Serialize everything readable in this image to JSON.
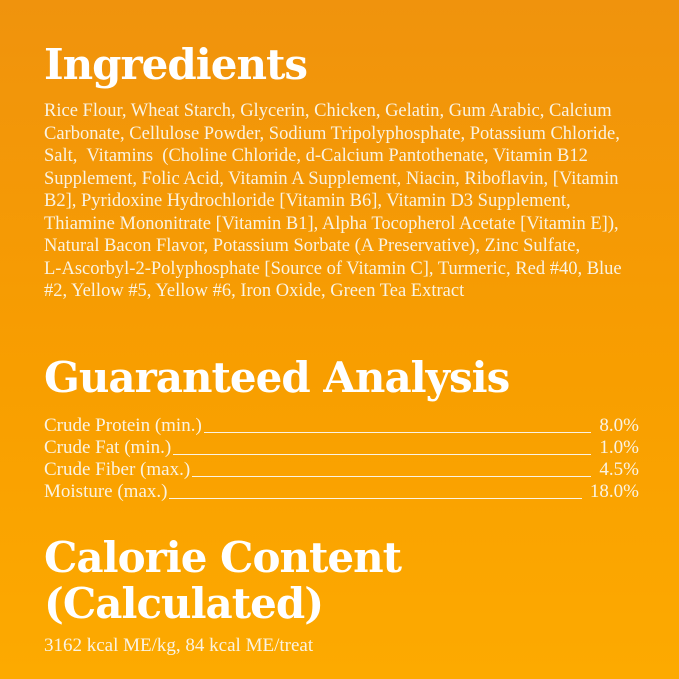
{
  "theme": {
    "background_top": "#F0930D",
    "background_bottom": "#FDAA00",
    "heading_color": "#FFFFFF",
    "body_text_color": "#FAF3E2"
  },
  "ingredients": {
    "heading": "Ingredients",
    "body": "Rice Flour, Wheat Starch, Glycerin, Chicken, Gelatin, Gum Arabic, Calcium\nCarbonate, Cellulose Powder, Sodium Tripolyphosphate, Potassium Chloride,\nSalt,  Vitamins  (Choline Chloride, d-Calcium Pantothenate, Vitamin B12\nSupplement, Folic Acid, Vitamin A Supplement, Niacin, Riboflavin, [Vitamin\nB2], Pyridoxine Hydrochloride [Vitamin B6], Vitamin D3 Supplement,\nThiamine Mononitrate [Vitamin B1], Alpha Tocopherol Acetate [Vitamin E]),\nNatural Bacon Flavor, Potassium Sorbate (A Preservative), Zinc Sulfate,\nL-Ascorbyl-2-Polyphosphate [Source of Vitamin C], Turmeric, Red #40, Blue\n#2, Yellow #5, Yellow #6, Iron Oxide, Green Tea Extract"
  },
  "guaranteed_analysis": {
    "heading": "Guaranteed Analysis",
    "rows": [
      {
        "label": "Crude Protein (min.)",
        "value": "8.0%"
      },
      {
        "label": "Crude Fat (min.)",
        "value": "1.0%"
      },
      {
        "label": "Crude Fiber (max.)",
        "value": "4.5%"
      },
      {
        "label": "Moisture (max.)",
        "value": "18.0%"
      }
    ]
  },
  "calorie_content": {
    "heading": "Calorie Content (Calculated)",
    "detail": "3162 kcal ME/kg, 84 kcal ME/treat"
  }
}
